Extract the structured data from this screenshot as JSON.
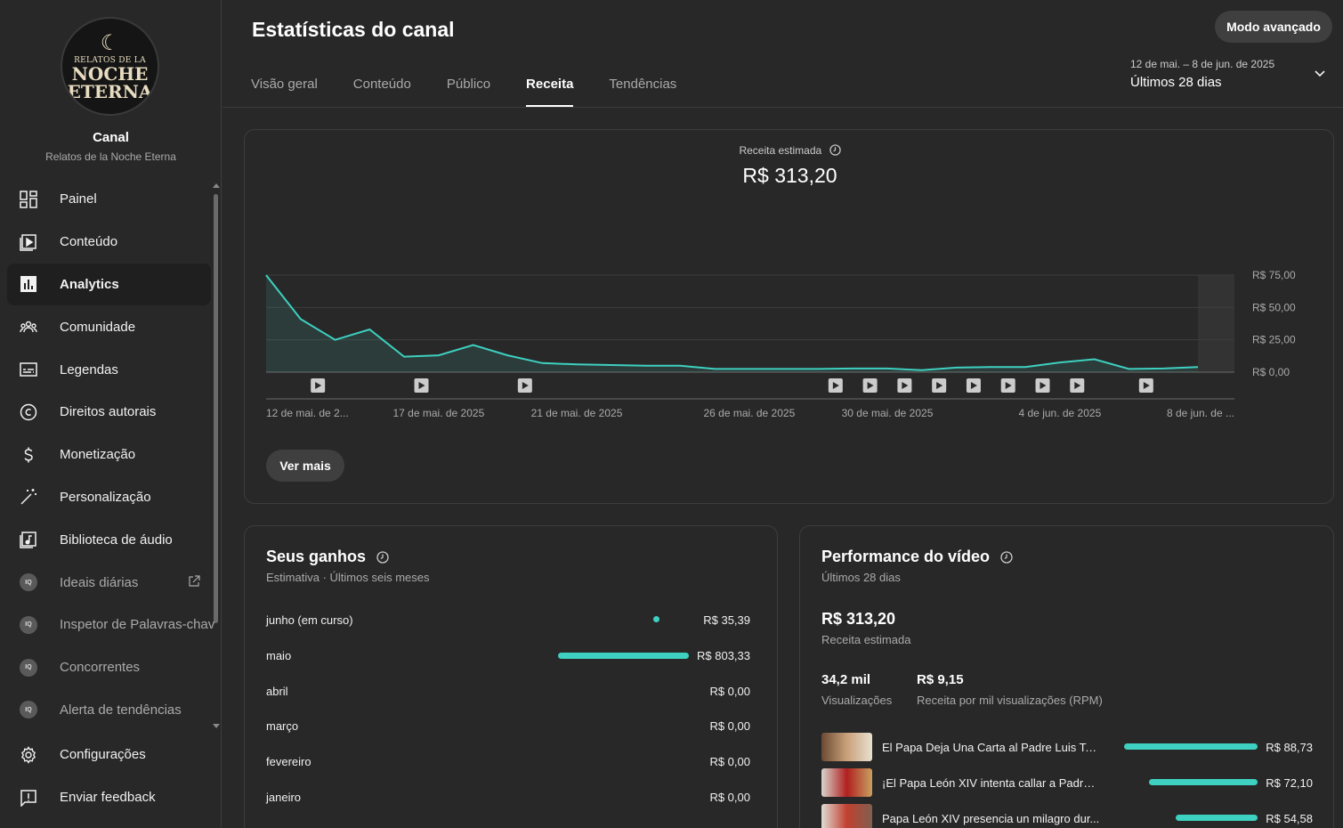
{
  "channel": {
    "title": "Canal",
    "name": "Relatos de la Noche Eterna",
    "logo_line1": "RELATOS DE LA",
    "logo_line2": "NOCHE",
    "logo_line3": "ETERNA"
  },
  "sidebar": {
    "items": [
      {
        "label": "Painel",
        "icon": "dashboard-icon"
      },
      {
        "label": "Conteúdo",
        "icon": "content-icon"
      },
      {
        "label": "Analytics",
        "icon": "analytics-icon",
        "active": true
      },
      {
        "label": "Comunidade",
        "icon": "community-icon"
      },
      {
        "label": "Legendas",
        "icon": "subtitles-icon"
      },
      {
        "label": "Direitos autorais",
        "icon": "copyright-icon"
      },
      {
        "label": "Monetização",
        "icon": "dollar-icon"
      },
      {
        "label": "Personalização",
        "icon": "magic-wand-icon"
      },
      {
        "label": "Biblioteca de áudio",
        "icon": "audio-library-icon"
      },
      {
        "label": "Ideais diárias",
        "icon": "vidiq-icon",
        "external": true
      },
      {
        "label": "Inspetor de Palavras-chav",
        "icon": "vidiq-icon"
      },
      {
        "label": "Concorrentes",
        "icon": "vidiq-icon"
      },
      {
        "label": "Alerta de tendências",
        "icon": "vidiq-icon"
      }
    ],
    "bottom": [
      {
        "label": "Configurações",
        "icon": "settings-icon"
      },
      {
        "label": "Enviar feedback",
        "icon": "feedback-icon"
      }
    ]
  },
  "header": {
    "title": "Estatísticas do canal",
    "advanced_button": "Modo avançado",
    "tabs": [
      "Visão geral",
      "Conteúdo",
      "Público",
      "Receita",
      "Tendências"
    ],
    "active_tab": "Receita",
    "date_range": "12 de mai. – 8 de jun. de 2025",
    "date_selection": "Últimos 28 dias"
  },
  "revenue": {
    "label": "Receita estimada",
    "value": "R$ 313,20",
    "see_more": "Ver mais"
  },
  "chart_data": {
    "type": "area",
    "title": "Receita estimada",
    "y_tick_labels": [
      "R$ 75,00",
      "R$ 50,00",
      "R$ 25,00",
      "R$ 0,00"
    ],
    "ylim": [
      0,
      75
    ],
    "x_tick_labels": [
      "12 de mai. de 2...",
      "17 de mai. de 2025",
      "21 de mai. de 2025",
      "26 de mai. de 2025",
      "30 de mai. de 2025",
      "4 de jun. de 2025",
      "8 de jun. de ..."
    ],
    "x": [
      "2025-05-12",
      "2025-05-13",
      "2025-05-14",
      "2025-05-15",
      "2025-05-16",
      "2025-05-17",
      "2025-05-18",
      "2025-05-19",
      "2025-05-20",
      "2025-05-21",
      "2025-05-22",
      "2025-05-23",
      "2025-05-24",
      "2025-05-25",
      "2025-05-26",
      "2025-05-27",
      "2025-05-28",
      "2025-05-29",
      "2025-05-30",
      "2025-05-31",
      "2025-06-01",
      "2025-06-02",
      "2025-06-03",
      "2025-06-04",
      "2025-06-05",
      "2025-06-06",
      "2025-06-07",
      "2025-06-08"
    ],
    "series": [
      {
        "values": [
          75,
          41,
          25,
          33,
          12,
          13,
          21,
          13,
          7,
          6,
          5.5,
          5,
          5,
          2.5,
          2.5,
          2.5,
          2.5,
          2.8,
          2.8,
          1.5,
          3.5,
          4,
          4,
          7.5,
          10,
          2.5,
          2.8,
          4
        ]
      }
    ],
    "upload_markers": [
      "2025-05-13",
      "2025-05-16",
      "2025-05-19",
      "2025-05-28",
      "2025-05-29",
      "2025-05-30",
      "2025-05-31",
      "2025-06-01",
      "2025-06-02",
      "2025-06-03",
      "2025-06-04",
      "2025-06-06"
    ],
    "line_color": "#3ed0c0",
    "grid": true
  },
  "earnings": {
    "title": "Seus ganhos",
    "subtitle": "Estimativa · Últimos seis meses",
    "rows": [
      {
        "month": "junho (em curso)",
        "value": "R$ 35,39",
        "amount": 35.39
      },
      {
        "month": "maio",
        "value": "R$ 803,33",
        "amount": 803.33
      },
      {
        "month": "abril",
        "value": "R$ 0,00",
        "amount": 0
      },
      {
        "month": "março",
        "value": "R$ 0,00",
        "amount": 0
      },
      {
        "month": "fevereiro",
        "value": "R$ 0,00",
        "amount": 0
      },
      {
        "month": "janeiro",
        "value": "R$ 0,00",
        "amount": 0
      }
    ]
  },
  "performance": {
    "title": "Performance do vídeo",
    "subtitle": "Últimos 28 dias",
    "revenue_value": "R$ 313,20",
    "revenue_label": "Receita estimada",
    "views_value": "34,2 mil",
    "views_label": "Visualizações",
    "rpm_value": "R$ 9,15",
    "rpm_label": "Receita por mil visualizações (RPM)",
    "videos": [
      {
        "title": "El Papa Deja Una Carta al Padre Luis Tor...",
        "value": "R$ 88,73",
        "amount": 88.73
      },
      {
        "title": "¡El Papa León XIV intenta callar a Padre ...",
        "value": "R$ 72,10",
        "amount": 72.1
      },
      {
        "title": "Papa León XIV presencia un milagro dur...",
        "value": "R$ 54,58",
        "amount": 54.58
      }
    ]
  }
}
